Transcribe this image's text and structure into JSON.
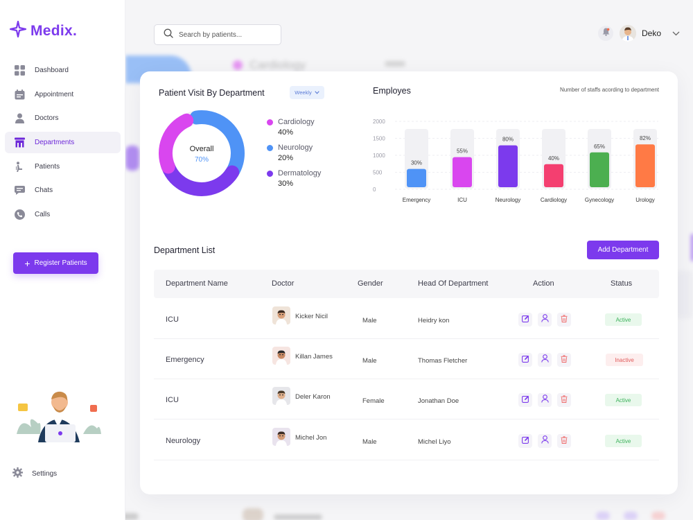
{
  "brand": {
    "name": "Medix."
  },
  "search": {
    "placeholder": "Search by patients..."
  },
  "user": {
    "name": "Deko"
  },
  "nav": [
    {
      "label": "Dashboard",
      "icon": "dashboard-icon"
    },
    {
      "label": "Appointment",
      "icon": "calendar-icon"
    },
    {
      "label": "Doctors",
      "icon": "doctor-icon"
    },
    {
      "label": "Departments",
      "icon": "department-icon",
      "active": true
    },
    {
      "label": "Patients",
      "icon": "patient-icon"
    },
    {
      "label": "Chats",
      "icon": "chat-icon"
    },
    {
      "label": "Calls",
      "icon": "phone-icon"
    }
  ],
  "register_label": "Register Patients",
  "settings_label": "Settings",
  "patient_visit": {
    "title": "Patient Visit By Department",
    "period": "Weekly",
    "center_label": "Overall",
    "center_value": "70%",
    "segments": [
      {
        "name": "Cardiology",
        "value": "40%",
        "color": "#d946ef"
      },
      {
        "name": "Neurology",
        "value": "20%",
        "color": "#4f93f6"
      },
      {
        "name": "Dermatology",
        "value": "30%",
        "color": "#7c3aed"
      }
    ]
  },
  "employees": {
    "title": "Employes",
    "subtitle": "Number of staffs acording to department"
  },
  "chart_data": {
    "type": "bar",
    "title": "Employes",
    "categories": [
      "Emergency",
      "ICU",
      "Neurology",
      "Cardiology",
      "Gynecology",
      "Urology"
    ],
    "values": [
      30,
      55,
      80,
      40,
      65,
      82
    ],
    "value_labels": [
      "30%",
      "55%",
      "80%",
      "40%",
      "65%",
      "82%"
    ],
    "colors": [
      "#4f93f6",
      "#d946ef",
      "#7c3aed",
      "#f43f70",
      "#4caf50",
      "#ff7a45"
    ],
    "yticks": [
      "2000",
      "1500",
      "1000",
      "500",
      "0"
    ],
    "ylim": [
      0,
      100
    ],
    "grid": true
  },
  "department_list": {
    "title": "Department List",
    "add_label": "Add Department",
    "columns": [
      "Department Name",
      "Doctor",
      "Gender",
      "Head Of Department",
      "Action",
      "Status"
    ],
    "rows": [
      {
        "department": "ICU",
        "doctor": "Kicker Nicil",
        "gender": "Male",
        "head": "Heidry kon",
        "status": "Active"
      },
      {
        "department": "Emergency",
        "doctor": "Killan James",
        "gender": "Male",
        "head": "Thomas Fletcher",
        "status": "Inactive"
      },
      {
        "department": "ICU",
        "doctor": "Deler Karon",
        "gender": "Female",
        "head": "Jonathan Doe",
        "status": "Active"
      },
      {
        "department": "Neurology",
        "doctor": "Michel Jon",
        "gender": "Male",
        "head": "Michel Liyo",
        "status": "Active"
      }
    ]
  },
  "background": {
    "blurred_title": "Cardiology"
  }
}
